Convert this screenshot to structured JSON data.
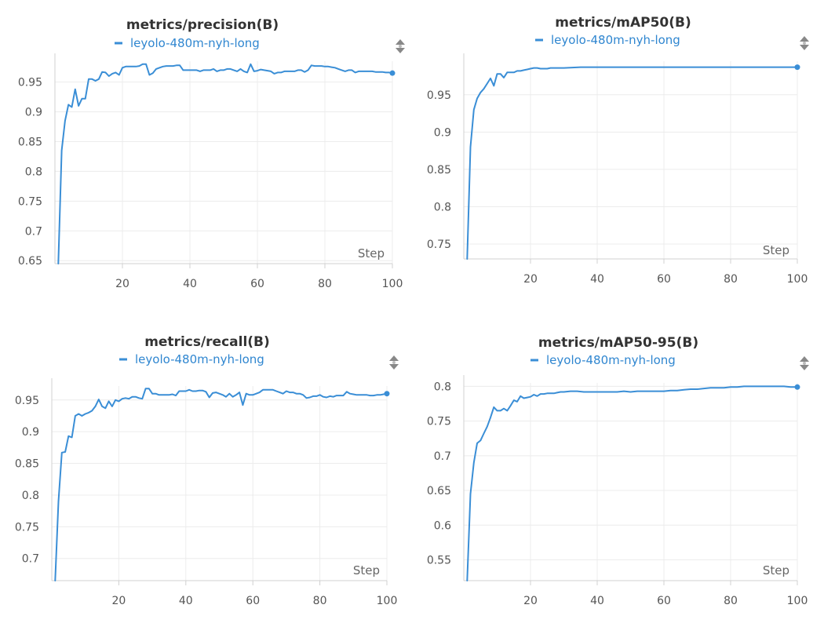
{
  "accent_color": "#3a8ed6",
  "run_name": "leyolo-480m-nyh-long",
  "chart_data": [
    {
      "type": "line",
      "title": "metrics/precision(B)",
      "xlabel": "Step",
      "xlim": [
        0,
        100
      ],
      "ylim": [
        0.645,
        0.985
      ],
      "xticks": [
        20,
        40,
        60,
        80,
        100
      ],
      "yticks": [
        0.65,
        0.7,
        0.75,
        0.8,
        0.85,
        0.9,
        0.95
      ],
      "ytick_labels": [
        "0.65",
        "0.7",
        "0.75",
        "0.8",
        "0.85",
        "0.9",
        "0.95"
      ],
      "series": [
        {
          "name": "leyolo-480m-nyh-long",
          "x": [
            1,
            2,
            3,
            4,
            5,
            6,
            7,
            8,
            9,
            10,
            11,
            12,
            13,
            14,
            15,
            16,
            17,
            18,
            19,
            20,
            21,
            22,
            23,
            24,
            25,
            26,
            27,
            28,
            29,
            30,
            31,
            32,
            33,
            34,
            35,
            36,
            37,
            38,
            39,
            40,
            41,
            42,
            43,
            44,
            45,
            46,
            47,
            48,
            49,
            50,
            51,
            52,
            53,
            54,
            55,
            56,
            57,
            58,
            59,
            60,
            61,
            62,
            63,
            64,
            65,
            66,
            67,
            68,
            69,
            70,
            71,
            72,
            73,
            74,
            75,
            76,
            77,
            78,
            79,
            80,
            81,
            82,
            83,
            84,
            85,
            86,
            87,
            88,
            89,
            90,
            91,
            92,
            93,
            94,
            95,
            96,
            97,
            98,
            99,
            100
          ],
          "y": [
            0.645,
            0.835,
            0.885,
            0.912,
            0.908,
            0.938,
            0.91,
            0.922,
            0.922,
            0.955,
            0.955,
            0.952,
            0.955,
            0.967,
            0.966,
            0.96,
            0.964,
            0.966,
            0.962,
            0.974,
            0.976,
            0.976,
            0.976,
            0.976,
            0.977,
            0.98,
            0.98,
            0.962,
            0.965,
            0.972,
            0.974,
            0.976,
            0.977,
            0.977,
            0.977,
            0.978,
            0.978,
            0.97,
            0.97,
            0.97,
            0.97,
            0.97,
            0.968,
            0.97,
            0.97,
            0.97,
            0.972,
            0.968,
            0.97,
            0.97,
            0.972,
            0.972,
            0.97,
            0.968,
            0.972,
            0.968,
            0.966,
            0.98,
            0.968,
            0.969,
            0.971,
            0.97,
            0.969,
            0.968,
            0.964,
            0.966,
            0.966,
            0.968,
            0.968,
            0.968,
            0.968,
            0.97,
            0.97,
            0.967,
            0.97,
            0.978,
            0.977,
            0.977,
            0.977,
            0.976,
            0.976,
            0.975,
            0.974,
            0.972,
            0.97,
            0.968,
            0.97,
            0.97,
            0.966,
            0.968,
            0.968,
            0.968,
            0.968,
            0.968,
            0.967,
            0.967,
            0.967,
            0.966,
            0.966,
            0.965
          ]
        }
      ]
    },
    {
      "type": "line",
      "title": "metrics/mAP50(B)",
      "xlabel": "Step",
      "xlim": [
        0,
        100
      ],
      "ylim": [
        0.73,
        0.995
      ],
      "xticks": [
        20,
        40,
        60,
        80,
        100
      ],
      "yticks": [
        0.75,
        0.8,
        0.85,
        0.9,
        0.95
      ],
      "ytick_labels": [
        "0.75",
        "0.8",
        "0.85",
        "0.9",
        "0.95"
      ],
      "series": [
        {
          "name": "leyolo-480m-nyh-long",
          "x": [
            1,
            2,
            3,
            4,
            5,
            6,
            7,
            8,
            9,
            10,
            11,
            12,
            13,
            14,
            15,
            16,
            17,
            18,
            19,
            20,
            21,
            22,
            23,
            24,
            25,
            26,
            27,
            28,
            29,
            30,
            35,
            40,
            45,
            50,
            55,
            60,
            65,
            70,
            75,
            80,
            85,
            90,
            95,
            100
          ],
          "y": [
            0.73,
            0.88,
            0.93,
            0.945,
            0.953,
            0.958,
            0.965,
            0.972,
            0.962,
            0.978,
            0.978,
            0.973,
            0.98,
            0.98,
            0.98,
            0.982,
            0.982,
            0.983,
            0.984,
            0.985,
            0.986,
            0.986,
            0.985,
            0.985,
            0.985,
            0.986,
            0.986,
            0.986,
            0.986,
            0.986,
            0.987,
            0.987,
            0.987,
            0.987,
            0.987,
            0.987,
            0.987,
            0.987,
            0.987,
            0.987,
            0.987,
            0.987,
            0.987,
            0.987
          ]
        }
      ]
    },
    {
      "type": "line",
      "title": "metrics/recall(B)",
      "xlabel": "Step",
      "xlim": [
        0,
        100
      ],
      "ylim": [
        0.665,
        0.972
      ],
      "xticks": [
        20,
        40,
        60,
        80,
        100
      ],
      "yticks": [
        0.7,
        0.75,
        0.8,
        0.85,
        0.9,
        0.95
      ],
      "ytick_labels": [
        "0.7",
        "0.75",
        "0.8",
        "0.85",
        "0.9",
        "0.95"
      ],
      "series": [
        {
          "name": "leyolo-480m-nyh-long",
          "x": [
            1,
            2,
            3,
            4,
            5,
            6,
            7,
            8,
            9,
            10,
            11,
            12,
            13,
            14,
            15,
            16,
            17,
            18,
            19,
            20,
            21,
            22,
            23,
            24,
            25,
            26,
            27,
            28,
            29,
            30,
            31,
            32,
            33,
            34,
            35,
            36,
            37,
            38,
            39,
            40,
            41,
            42,
            43,
            44,
            45,
            46,
            47,
            48,
            49,
            50,
            51,
            52,
            53,
            54,
            55,
            56,
            57,
            58,
            59,
            60,
            61,
            62,
            63,
            64,
            65,
            66,
            67,
            68,
            69,
            70,
            71,
            72,
            73,
            74,
            75,
            76,
            77,
            78,
            79,
            80,
            81,
            82,
            83,
            84,
            85,
            86,
            87,
            88,
            89,
            90,
            91,
            92,
            93,
            94,
            95,
            96,
            97,
            98,
            99,
            100
          ],
          "y": [
            0.665,
            0.79,
            0.867,
            0.868,
            0.893,
            0.891,
            0.925,
            0.928,
            0.925,
            0.928,
            0.93,
            0.933,
            0.94,
            0.951,
            0.94,
            0.937,
            0.948,
            0.94,
            0.95,
            0.948,
            0.952,
            0.953,
            0.952,
            0.955,
            0.955,
            0.953,
            0.952,
            0.968,
            0.968,
            0.96,
            0.96,
            0.958,
            0.958,
            0.958,
            0.958,
            0.959,
            0.957,
            0.964,
            0.964,
            0.964,
            0.966,
            0.964,
            0.964,
            0.965,
            0.965,
            0.963,
            0.954,
            0.961,
            0.962,
            0.96,
            0.958,
            0.955,
            0.96,
            0.955,
            0.958,
            0.962,
            0.942,
            0.96,
            0.958,
            0.958,
            0.96,
            0.962,
            0.966,
            0.966,
            0.966,
            0.966,
            0.964,
            0.962,
            0.96,
            0.964,
            0.962,
            0.962,
            0.96,
            0.96,
            0.958,
            0.953,
            0.954,
            0.956,
            0.956,
            0.958,
            0.955,
            0.954,
            0.956,
            0.955,
            0.957,
            0.957,
            0.957,
            0.963,
            0.96,
            0.959,
            0.958,
            0.958,
            0.958,
            0.958,
            0.957,
            0.957,
            0.958,
            0.958,
            0.959,
            0.96
          ]
        }
      ]
    },
    {
      "type": "line",
      "title": "metrics/mAP50-95(B)",
      "xlabel": "Step",
      "xlim": [
        0,
        100
      ],
      "ylim": [
        0.52,
        0.805
      ],
      "xticks": [
        20,
        40,
        60,
        80,
        100
      ],
      "yticks": [
        0.55,
        0.6,
        0.65,
        0.7,
        0.75,
        0.8
      ],
      "ytick_labels": [
        "0.55",
        "0.6",
        "0.65",
        "0.7",
        "0.75",
        "0.8"
      ],
      "series": [
        {
          "name": "leyolo-480m-nyh-long",
          "x": [
            1,
            2,
            3,
            4,
            5,
            6,
            7,
            8,
            9,
            10,
            11,
            12,
            13,
            14,
            15,
            16,
            17,
            18,
            19,
            20,
            21,
            22,
            23,
            24,
            25,
            26,
            27,
            28,
            29,
            30,
            32,
            34,
            36,
            38,
            40,
            42,
            44,
            46,
            48,
            50,
            52,
            54,
            56,
            58,
            60,
            62,
            64,
            66,
            68,
            70,
            72,
            74,
            76,
            78,
            80,
            82,
            84,
            86,
            88,
            90,
            92,
            94,
            96,
            98,
            100
          ],
          "y": [
            0.52,
            0.645,
            0.69,
            0.718,
            0.722,
            0.732,
            0.742,
            0.755,
            0.77,
            0.765,
            0.765,
            0.768,
            0.765,
            0.772,
            0.78,
            0.778,
            0.786,
            0.783,
            0.784,
            0.785,
            0.788,
            0.786,
            0.789,
            0.789,
            0.79,
            0.79,
            0.79,
            0.791,
            0.792,
            0.792,
            0.793,
            0.793,
            0.792,
            0.792,
            0.792,
            0.792,
            0.792,
            0.792,
            0.793,
            0.792,
            0.793,
            0.793,
            0.793,
            0.793,
            0.793,
            0.794,
            0.794,
            0.795,
            0.796,
            0.796,
            0.797,
            0.798,
            0.798,
            0.798,
            0.799,
            0.799,
            0.8,
            0.8,
            0.8,
            0.8,
            0.8,
            0.8,
            0.8,
            0.799,
            0.799
          ]
        }
      ]
    }
  ]
}
